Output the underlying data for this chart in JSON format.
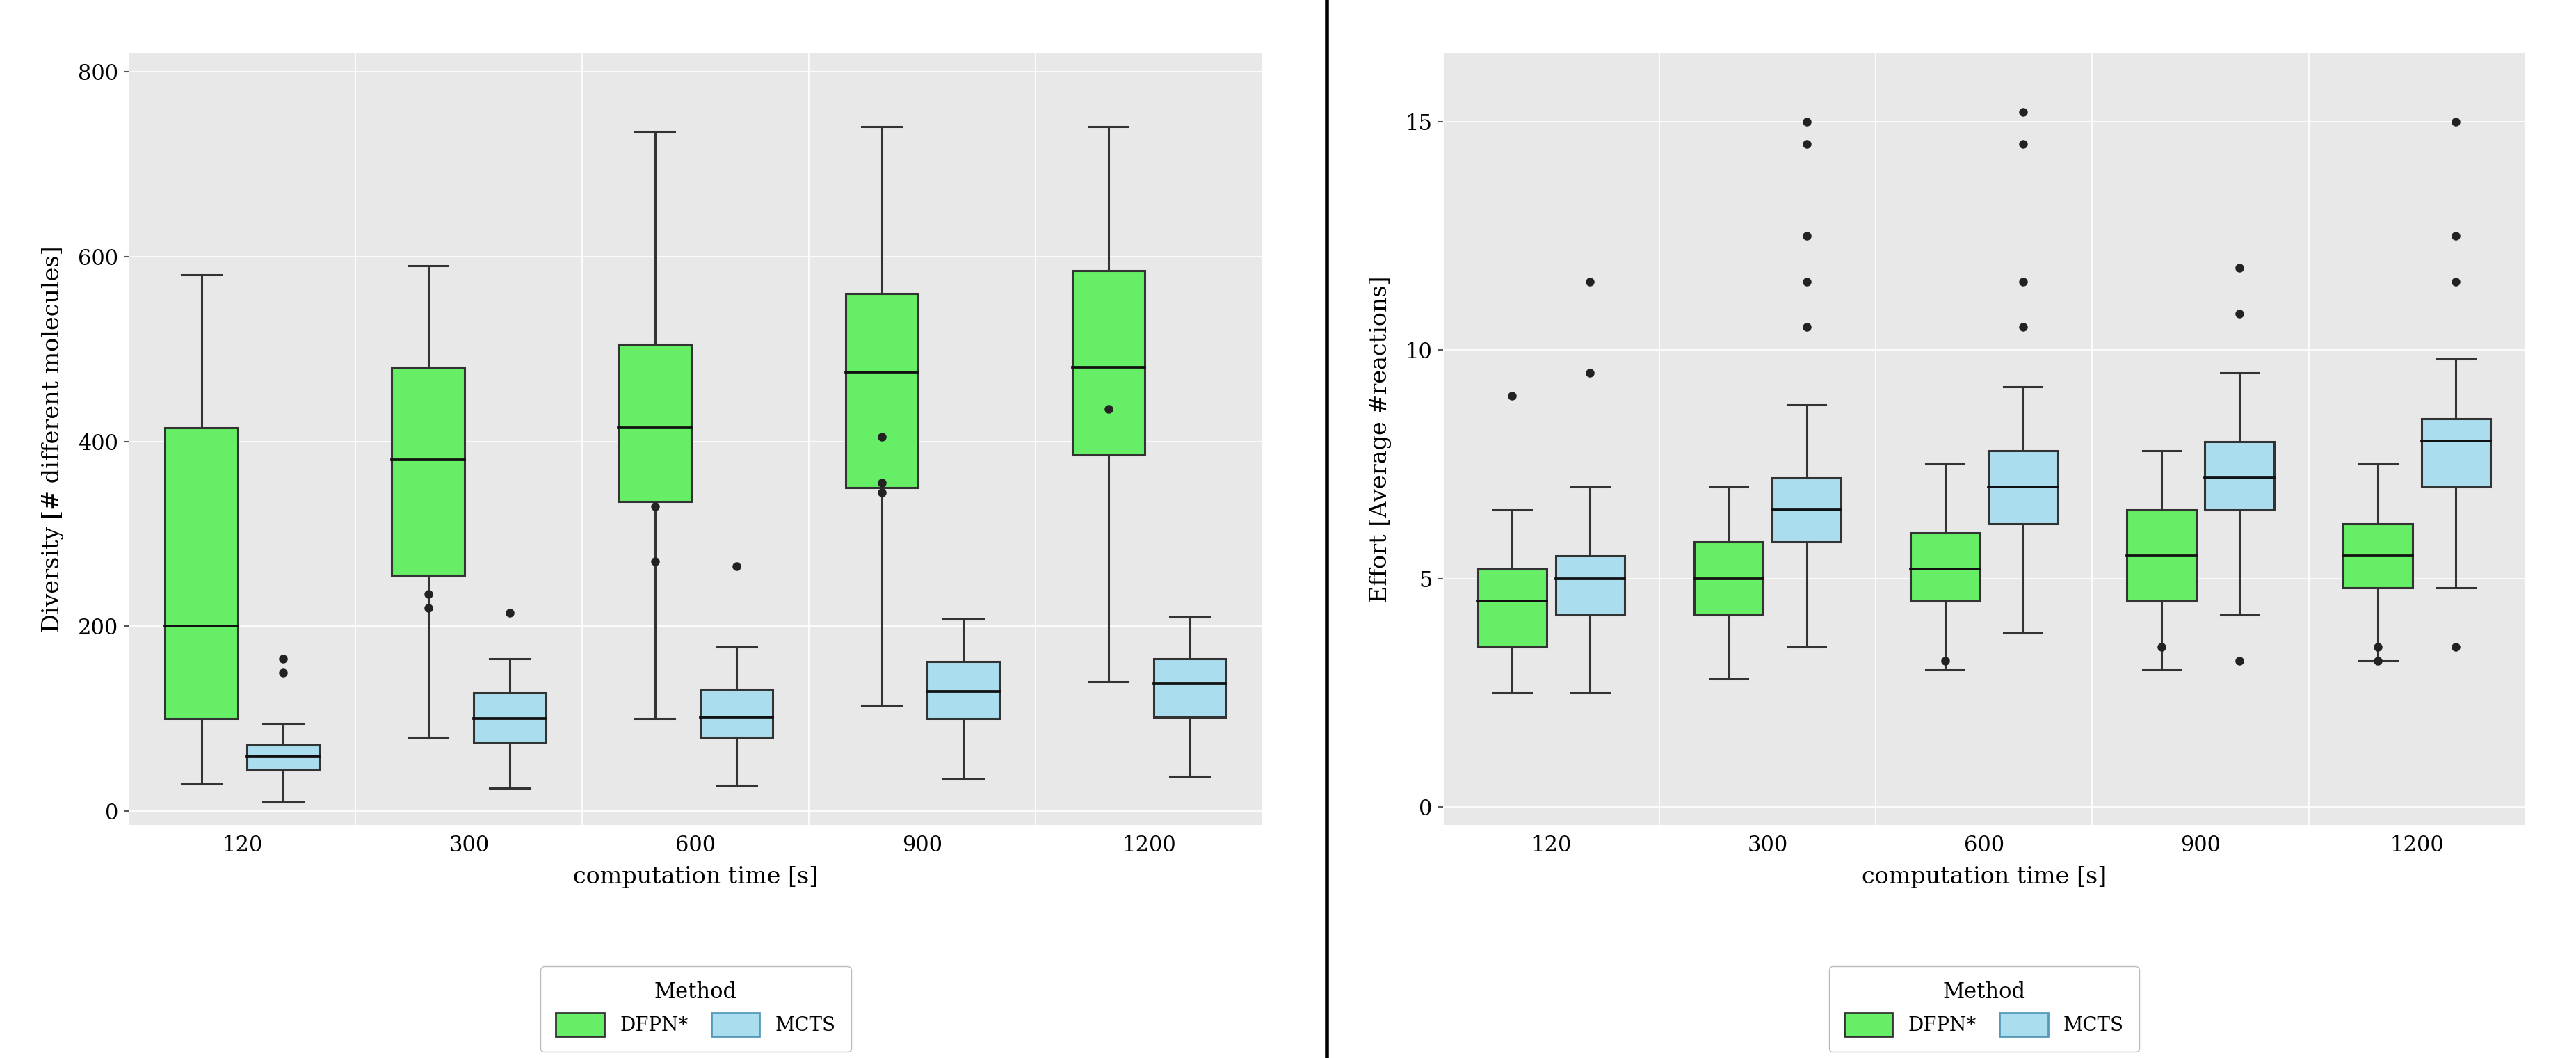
{
  "title_left": "Diversity [# different molecules]",
  "title_right": "Effort [Average #reactions]",
  "xlabel": "computation time [s]",
  "x_categories": [
    120,
    300,
    600,
    900,
    1200
  ],
  "background_color": "#e8e8e8",
  "panel_bg": "#e8e8e8",
  "grid_color": "#ffffff",
  "dfpn_color": "#66ee66",
  "mcts_color": "#aaddee",
  "box_edge_color": "#333333",
  "median_color": "#111111",
  "outlier_color": "#222222",
  "diversity_dfpn": {
    "120": {
      "q1": 100,
      "median": 200,
      "q3": 415,
      "whislo": 30,
      "whishi": 580,
      "fliers": []
    },
    "300": {
      "q1": 255,
      "median": 380,
      "q3": 480,
      "whislo": 80,
      "whishi": 590,
      "fliers": [
        220,
        235
      ]
    },
    "600": {
      "q1": 335,
      "median": 415,
      "q3": 505,
      "whislo": 100,
      "whishi": 735,
      "fliers": [
        270,
        330
      ]
    },
    "900": {
      "q1": 350,
      "median": 475,
      "q3": 560,
      "whislo": 115,
      "whishi": 740,
      "fliers": [
        345,
        355,
        405
      ]
    },
    "1200": {
      "q1": 385,
      "median": 480,
      "q3": 585,
      "whislo": 140,
      "whishi": 740,
      "fliers": [
        435
      ]
    }
  },
  "diversity_mcts": {
    "120": {
      "q1": 45,
      "median": 60,
      "q3": 72,
      "whislo": 10,
      "whishi": 95,
      "fliers": [
        150,
        165
      ]
    },
    "300": {
      "q1": 75,
      "median": 100,
      "q3": 128,
      "whislo": 25,
      "whishi": 165,
      "fliers": [
        215
      ]
    },
    "600": {
      "q1": 80,
      "median": 102,
      "q3": 132,
      "whislo": 28,
      "whishi": 178,
      "fliers": [
        265
      ]
    },
    "900": {
      "q1": 100,
      "median": 130,
      "q3": 162,
      "whislo": 35,
      "whishi": 208,
      "fliers": []
    },
    "1200": {
      "q1": 102,
      "median": 138,
      "q3": 165,
      "whislo": 38,
      "whishi": 210,
      "fliers": []
    }
  },
  "effort_dfpn": {
    "120": {
      "q1": 3.5,
      "median": 4.5,
      "q3": 5.2,
      "whislo": 2.5,
      "whishi": 6.5,
      "fliers": [
        9.0
      ]
    },
    "300": {
      "q1": 4.2,
      "median": 5.0,
      "q3": 5.8,
      "whislo": 2.8,
      "whishi": 7.0,
      "fliers": []
    },
    "600": {
      "q1": 4.5,
      "median": 5.2,
      "q3": 6.0,
      "whislo": 3.0,
      "whishi": 7.5,
      "fliers": [
        3.2
      ]
    },
    "900": {
      "q1": 4.5,
      "median": 5.5,
      "q3": 6.5,
      "whislo": 3.0,
      "whishi": 7.8,
      "fliers": [
        3.5
      ]
    },
    "1200": {
      "q1": 4.8,
      "median": 5.5,
      "q3": 6.2,
      "whislo": 3.2,
      "whishi": 7.5,
      "fliers": [
        3.2,
        3.5
      ]
    }
  },
  "effort_mcts": {
    "120": {
      "q1": 4.2,
      "median": 5.0,
      "q3": 5.5,
      "whislo": 2.5,
      "whishi": 7.0,
      "fliers": [
        9.5,
        11.5
      ]
    },
    "300": {
      "q1": 5.8,
      "median": 6.5,
      "q3": 7.2,
      "whislo": 3.5,
      "whishi": 8.8,
      "fliers": [
        10.5,
        11.5,
        12.5,
        14.5,
        15.0
      ]
    },
    "600": {
      "q1": 6.2,
      "median": 7.0,
      "q3": 7.8,
      "whislo": 3.8,
      "whishi": 9.2,
      "fliers": [
        10.5,
        11.5,
        14.5,
        15.2
      ]
    },
    "900": {
      "q1": 6.5,
      "median": 7.2,
      "q3": 8.0,
      "whislo": 4.2,
      "whishi": 9.5,
      "fliers": [
        10.8,
        11.8,
        3.2
      ]
    },
    "1200": {
      "q1": 7.0,
      "median": 8.0,
      "q3": 8.5,
      "whislo": 4.8,
      "whishi": 9.8,
      "fliers": [
        11.5,
        12.5,
        15.0,
        3.5
      ]
    }
  },
  "diversity_ylim": [
    -15,
    820
  ],
  "diversity_yticks": [
    0,
    200,
    400,
    600,
    800
  ],
  "effort_ylim": [
    -0.4,
    16.5
  ],
  "effort_yticks": [
    0,
    5,
    10,
    15
  ],
  "tick_fontsize": 22,
  "label_fontsize": 24,
  "legend_fontsize": 20,
  "legend_title_fontsize": 22
}
